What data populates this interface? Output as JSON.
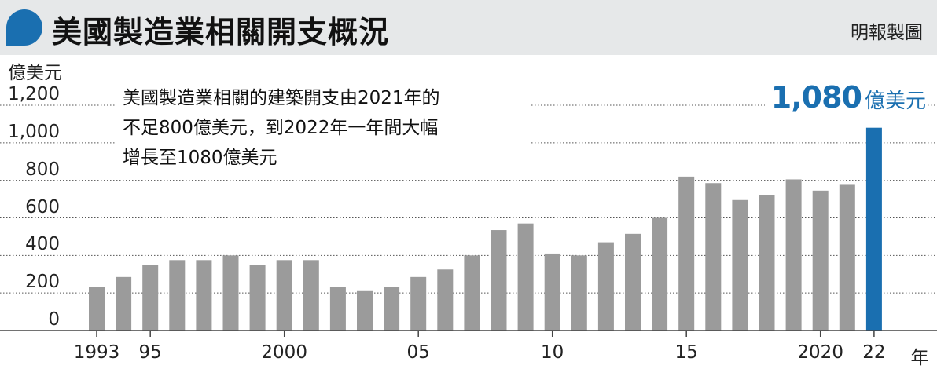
{
  "header": {
    "title": "美國製造業相關開支概況",
    "source": "明報製圖"
  },
  "annotation": {
    "lines": [
      "美國製造業相關的建築開支由2021年的",
      "不足800億美元，到2022年一年間大幅",
      "增長至1080億美元"
    ]
  },
  "callout": {
    "value": "1,080",
    "unit": "億美元"
  },
  "colors": {
    "bar": "#9b9b9b",
    "highlight_bar": "#1a6fb0",
    "header_bg": "#e6e8e9",
    "title_icon": "#1a6fb0"
  },
  "chart_data": {
    "type": "bar",
    "ylabel": "億美元",
    "xlabel": "年",
    "ylim": [
      0,
      1200
    ],
    "yticks": [
      {
        "value": 0,
        "label": "0"
      },
      {
        "value": 200,
        "label": "200"
      },
      {
        "value": 400,
        "label": "400"
      },
      {
        "value": 600,
        "label": "600"
      },
      {
        "value": 800,
        "label": "800"
      },
      {
        "value": 1000,
        "label": "1,000"
      },
      {
        "value": 1200,
        "label": "1,200"
      }
    ],
    "grid": "horizontal dotted",
    "categories": [
      1993,
      1994,
      1995,
      1996,
      1997,
      1998,
      1999,
      2000,
      2001,
      2002,
      2003,
      2004,
      2005,
      2006,
      2007,
      2008,
      2009,
      2010,
      2011,
      2012,
      2013,
      2014,
      2015,
      2016,
      2017,
      2018,
      2019,
      2020,
      2021,
      2022
    ],
    "values": [
      230,
      285,
      350,
      375,
      375,
      400,
      350,
      375,
      375,
      230,
      210,
      230,
      285,
      325,
      400,
      535,
      570,
      410,
      400,
      470,
      515,
      600,
      820,
      785,
      695,
      720,
      805,
      745,
      780,
      1080
    ],
    "highlight_index": 29,
    "xtick_labels": [
      {
        "year": 1993,
        "label": "1993"
      },
      {
        "year": 1995,
        "label": "95"
      },
      {
        "year": 2000,
        "label": "2000"
      },
      {
        "year": 2005,
        "label": "05"
      },
      {
        "year": 2010,
        "label": "10"
      },
      {
        "year": 2015,
        "label": "15"
      },
      {
        "year": 2020,
        "label": "2020"
      },
      {
        "year": 2022,
        "label": "22"
      }
    ]
  }
}
